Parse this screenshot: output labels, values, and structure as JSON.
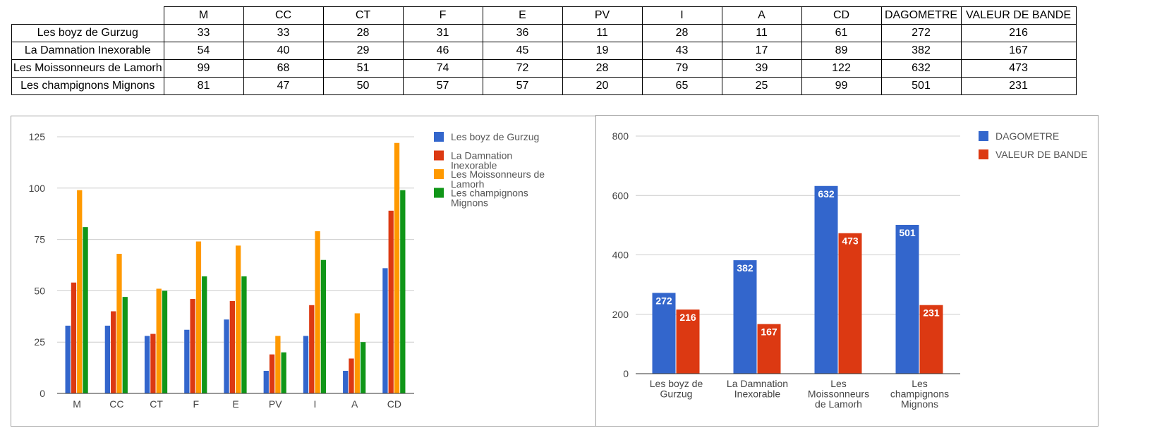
{
  "table": {
    "columns": [
      "M",
      "CC",
      "CT",
      "F",
      "E",
      "PV",
      "I",
      "A",
      "CD",
      "DAGOMETRE",
      "VALEUR DE BANDE"
    ],
    "rows": [
      {
        "name": "Les boyz de Gurzug",
        "values": [
          33,
          33,
          28,
          31,
          36,
          11,
          28,
          11,
          61,
          272,
          216
        ]
      },
      {
        "name": "La Damnation Inexorable",
        "values": [
          54,
          40,
          29,
          46,
          45,
          19,
          43,
          17,
          89,
          382,
          167
        ]
      },
      {
        "name": "Les Moissonneurs de Lamorh",
        "values": [
          99,
          68,
          51,
          74,
          72,
          28,
          79,
          39,
          122,
          632,
          473
        ]
      },
      {
        "name": "Les champignons Mignons",
        "values": [
          81,
          47,
          50,
          57,
          57,
          20,
          65,
          25,
          99,
          501,
          231
        ]
      }
    ]
  },
  "chart_data": [
    {
      "type": "bar",
      "categories": [
        "M",
        "CC",
        "CT",
        "F",
        "E",
        "PV",
        "I",
        "A",
        "CD"
      ],
      "series": [
        {
          "name": "Les boyz de Gurzug",
          "color": "#3366cc",
          "values": [
            33,
            33,
            28,
            31,
            36,
            11,
            28,
            11,
            61
          ]
        },
        {
          "name": "La Damnation Inexorable",
          "color": "#dc3912",
          "values": [
            54,
            40,
            29,
            46,
            45,
            19,
            43,
            17,
            89
          ]
        },
        {
          "name": "Les Moissonneurs de Lamorh",
          "color": "#ff9900",
          "values": [
            99,
            68,
            51,
            74,
            72,
            28,
            79,
            39,
            122
          ]
        },
        {
          "name": "Les champignons Mignons",
          "color": "#109618",
          "values": [
            81,
            47,
            50,
            57,
            57,
            20,
            65,
            25,
            99
          ]
        }
      ],
      "ylim": [
        0,
        125
      ],
      "yticks": [
        0,
        25,
        50,
        75,
        100,
        125
      ],
      "grid": true,
      "legend": "right"
    },
    {
      "type": "bar",
      "categories": [
        "Les boyz de Gurzug",
        "La Damnation Inexorable",
        "Les Moissonneurs de Lamorh",
        "Les champignons Mignons"
      ],
      "series": [
        {
          "name": "DAGOMETRE",
          "color": "#3366cc",
          "values": [
            272,
            382,
            632,
            501
          ]
        },
        {
          "name": "VALEUR DE BANDE",
          "color": "#dc3912",
          "values": [
            216,
            167,
            473,
            231
          ]
        }
      ],
      "ylim": [
        0,
        800
      ],
      "yticks": [
        0,
        200,
        400,
        600,
        800
      ],
      "grid": true,
      "legend": "right",
      "data_labels": true
    }
  ]
}
